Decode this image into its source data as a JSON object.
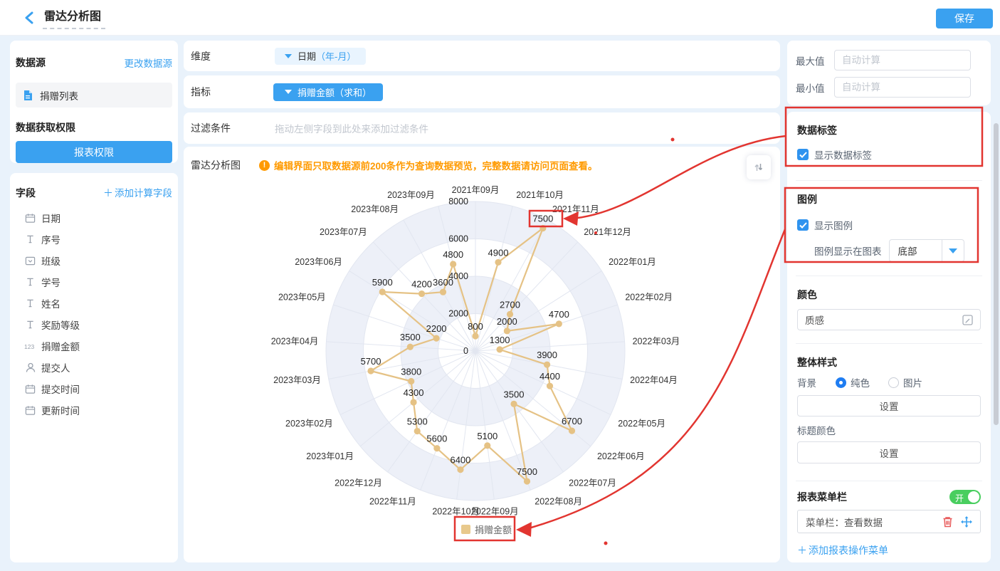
{
  "header": {
    "title": "雷达分析图",
    "save_label": "保存"
  },
  "datasource_panel": {
    "title": "数据源",
    "change_link": "更改数据源",
    "source_name": "捐赠列表",
    "permission_title": "数据获取权限",
    "permission_button": "报表权限"
  },
  "fields_panel": {
    "title": "字段",
    "add_link": "添加计算字段",
    "fields": [
      {
        "icon": "calendar-icon",
        "label": "日期"
      },
      {
        "icon": "text-icon",
        "label": "序号"
      },
      {
        "icon": "select-icon",
        "label": "班级"
      },
      {
        "icon": "text-icon",
        "label": "学号"
      },
      {
        "icon": "text-icon",
        "label": "姓名"
      },
      {
        "icon": "text-icon",
        "label": "奖励等级"
      },
      {
        "icon": "number-icon",
        "label": "捐赠金额"
      },
      {
        "icon": "person-icon",
        "label": "提交人"
      },
      {
        "icon": "calendar-icon",
        "label": "提交时间"
      },
      {
        "icon": "calendar-icon",
        "label": "更新时间"
      }
    ]
  },
  "config_rows": {
    "dimension_label": "维度",
    "dimension_chip_name": "日期",
    "dimension_chip_suffix": "（年-月）",
    "metric_label": "指标",
    "metric_chip": "捐赠金额（求和）",
    "filter_label": "过滤条件",
    "filter_placeholder": "拖动左侧字段到此处来添加过滤条件"
  },
  "chart_card": {
    "title": "雷达分析图",
    "warning_icon": "!",
    "warning": "编辑界面只取数据源前200条作为查询数据预览，完整数据请访问页面查看。",
    "legend_label": "捐赠金额"
  },
  "chart_data": {
    "type": "radar",
    "legend": [
      "捐赠金额"
    ],
    "legend_position": "bottom",
    "max": 8000,
    "ticks": [
      0,
      2000,
      4000,
      6000,
      8000
    ],
    "categories": [
      "2021年09月",
      "2021年10月",
      "2021年11月",
      "2021年12月",
      "2022年01月",
      "2022年02月",
      "2022年03月",
      "2022年04月",
      "2022年05月",
      "2022年06月",
      "2022年07月",
      "2022年08月",
      "2022年09月",
      "2022年10月",
      "2022年11月",
      "2022年12月",
      "2023年01月",
      "2023年02月",
      "2023年03月",
      "2023年04月",
      "2023年05月",
      "2023年06月",
      "2023年07月",
      "2023年08月",
      "2023年09月"
    ],
    "series": [
      {
        "name": "捐赠金额",
        "values": [
          800,
          4900,
          7500,
          2700,
          2000,
          4700,
          1300,
          3900,
          4400,
          6700,
          3500,
          7500,
          5100,
          6400,
          5600,
          5300,
          4300,
          3800,
          5700,
          3500,
          2200,
          5900,
          4200,
          3600,
          4800
        ]
      }
    ]
  },
  "settings_panel": {
    "max_label": "最大值",
    "max_placeholder": "自动计算",
    "min_label": "最小值",
    "min_placeholder": "自动计算",
    "data_label_section": {
      "title": "数据标签",
      "checkbox_label": "显示数据标签",
      "checked": true
    },
    "legend_section": {
      "title": "图例",
      "checkbox_label": "显示图例",
      "checked": true,
      "position_label": "图例显示在图表",
      "position_value": "底部"
    },
    "color_section": {
      "title": "颜色",
      "value": "质感"
    },
    "style_section": {
      "title": "整体样式",
      "bg_label": "背景",
      "radio_solid": "纯色",
      "radio_image": "图片",
      "bg_button": "设置",
      "title_color_label": "标题颜色",
      "title_color_button": "设置"
    },
    "menu_section": {
      "title": "报表菜单栏",
      "toggle_state": "开",
      "item_label": "菜单栏：查看数据",
      "add_link": "添加报表操作菜单"
    }
  },
  "icons": {
    "plus": "＋"
  },
  "colors": {
    "accent": "#3aa1f0",
    "warning": "#ff9a00",
    "annotation_red": "#e23530",
    "series_line": "#e5c285",
    "grid_band": "#edf0f8",
    "grid_line": "#e2e6f0",
    "toggle_on": "#49ce5f"
  }
}
